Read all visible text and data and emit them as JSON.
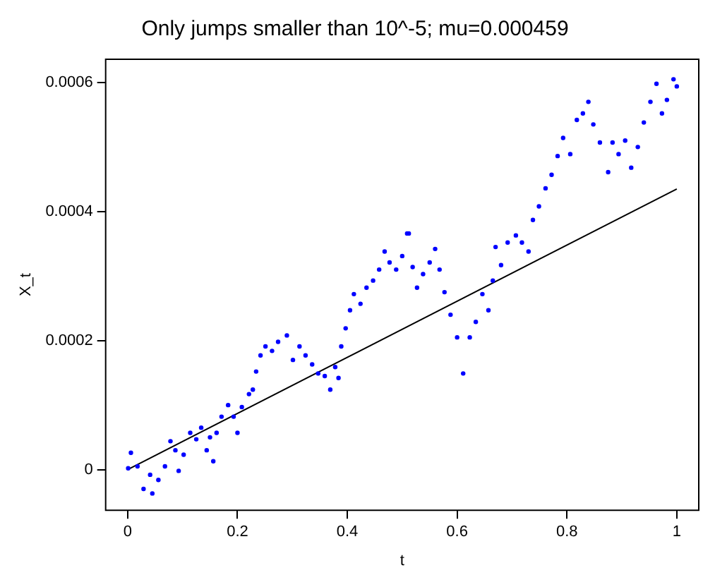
{
  "chart_data": {
    "type": "scatter",
    "title": "Only jumps smaller than 10^-5; mu=0.000459",
    "xlabel": "t",
    "ylabel": "X_t",
    "xlim": [
      -0.04,
      1.04
    ],
    "xticks": [
      0,
      0.2,
      0.4,
      0.6,
      0.8,
      1
    ],
    "ylim": [
      -6.3e-05,
      0.000636
    ],
    "yticks": [
      0,
      0.0002,
      0.0004,
      0.0006
    ],
    "grid": false,
    "legend": false,
    "series": [
      {
        "color": "#0000ff",
        "marker": "circle",
        "x": [
          0.001,
          0.006,
          0.018,
          0.029,
          0.041,
          0.045,
          0.056,
          0.068,
          0.078,
          0.087,
          0.093,
          0.102,
          0.114,
          0.125,
          0.134,
          0.144,
          0.15,
          0.156,
          0.162,
          0.171,
          0.183,
          0.193,
          0.2,
          0.208,
          0.221,
          0.228,
          0.234,
          0.242,
          0.251,
          0.263,
          0.274,
          0.29,
          0.301,
          0.313,
          0.324,
          0.336,
          0.347,
          0.359,
          0.369,
          0.378,
          0.384,
          0.389,
          0.397,
          0.405,
          0.412,
          0.424,
          0.435,
          0.447,
          0.458,
          0.468,
          0.477,
          0.489,
          0.5,
          0.509,
          0.512,
          0.519,
          0.527,
          0.538,
          0.55,
          0.56,
          0.568,
          0.577,
          0.588,
          0.6,
          0.611,
          0.623,
          0.634,
          0.646,
          0.657,
          0.665,
          0.67,
          0.68,
          0.692,
          0.707,
          0.718,
          0.73,
          0.738,
          0.749,
          0.761,
          0.772,
          0.783,
          0.793,
          0.806,
          0.818,
          0.829,
          0.839,
          0.848,
          0.86,
          0.875,
          0.883,
          0.894,
          0.906,
          0.917,
          0.929,
          0.94,
          0.952,
          0.963,
          0.973,
          0.982,
          0.994,
          1.0
        ],
        "values": [
          2e-06,
          2.6e-05,
          5e-06,
          -3e-05,
          -8e-06,
          -3.7e-05,
          -1.6e-05,
          5e-06,
          4.4e-05,
          3e-05,
          -2e-06,
          2.3e-05,
          5.7e-05,
          4.7e-05,
          6.5e-05,
          3e-05,
          5e-05,
          1.3e-05,
          5.7e-05,
          8.2e-05,
          0.0001,
          8.2e-05,
          5.7e-05,
          9.7e-05,
          0.000117,
          0.000124,
          0.000152,
          0.000177,
          0.000191,
          0.000184,
          0.000198,
          0.000208,
          0.00017,
          0.000191,
          0.000177,
          0.000163,
          0.000149,
          0.000145,
          0.000124,
          0.000159,
          0.000142,
          0.000191,
          0.000219,
          0.000247,
          0.000272,
          0.000257,
          0.000282,
          0.000293,
          0.00031,
          0.000338,
          0.000321,
          0.00031,
          0.000331,
          0.000366,
          0.000366,
          0.000314,
          0.000282,
          0.000303,
          0.000321,
          0.000342,
          0.00031,
          0.000275,
          0.00024,
          0.000205,
          0.000149,
          0.000205,
          0.000229,
          0.000272,
          0.000247,
          0.000293,
          0.000345,
          0.000317,
          0.000352,
          0.000363,
          0.000352,
          0.000338,
          0.000387,
          0.000408,
          0.000436,
          0.000457,
          0.000486,
          0.000514,
          0.000489,
          0.000542,
          0.000552,
          0.00057,
          0.000535,
          0.000507,
          0.000461,
          0.000507,
          0.000489,
          0.00051,
          0.000468,
          0.0005,
          0.000538,
          0.00057,
          0.000598,
          0.000552,
          0.000573,
          0.000605,
          0.000594
        ]
      },
      {
        "type": "line",
        "color": "#000000",
        "marker": "none",
        "line_style": "solid",
        "x": [
          0,
          1
        ],
        "values": [
          0,
          0.000435
        ]
      }
    ]
  }
}
